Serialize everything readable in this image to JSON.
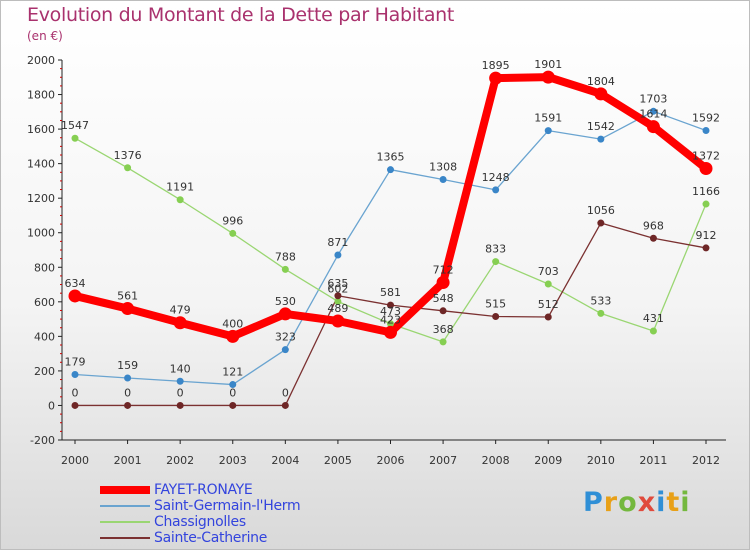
{
  "title": "Evolution du Montant de la Dette par Habitant",
  "subtitle": "(en €)",
  "logo": [
    "P",
    "r",
    "o",
    "x",
    "i",
    "t",
    "i"
  ],
  "chart_data": {
    "type": "line",
    "x": [
      2000,
      2001,
      2002,
      2003,
      2004,
      2005,
      2006,
      2007,
      2008,
      2009,
      2010,
      2011,
      2012
    ],
    "ylim": [
      -200,
      2000
    ],
    "yticks": [
      -200,
      0,
      200,
      400,
      600,
      800,
      1000,
      1200,
      1400,
      1600,
      1800,
      2000
    ],
    "grid": false,
    "legend_position": "bottom-left",
    "series": [
      {
        "name": "Saint-Germain-l'Herm",
        "color": "#6aa4d0",
        "point_color": "#3a86c8",
        "width": 1.3,
        "radius": 3.5,
        "values": [
          179,
          159,
          140,
          121,
          323,
          871,
          1365,
          1308,
          1248,
          1591,
          1542,
          1703,
          1592
        ]
      },
      {
        "name": "Chassignolles",
        "color": "#9ad672",
        "point_color": "#86cf52",
        "width": 1.3,
        "radius": 3.5,
        "values": [
          1547,
          1376,
          1191,
          996,
          788,
          602,
          473,
          368,
          833,
          703,
          533,
          431,
          1166
        ]
      },
      {
        "name": "Sainte-Catherine",
        "color": "#7b3131",
        "point_color": "#6e2626",
        "width": 1.3,
        "radius": 3.5,
        "values": [
          0,
          0,
          0,
          0,
          0,
          635,
          581,
          548,
          515,
          512,
          1056,
          968,
          912
        ]
      },
      {
        "name": "FAYET-RONAYE",
        "color": "#ff0000",
        "point_color": "#ff0000",
        "width": 8,
        "radius": 6.5,
        "values": [
          634,
          561,
          479,
          400,
          530,
          489,
          423,
          712,
          1895,
          1901,
          1804,
          1614,
          1372
        ]
      }
    ],
    "legend_order": [
      "FAYET-RONAYE",
      "Saint-Germain-l'Herm",
      "Chassignolles",
      "Sainte-Catherine"
    ],
    "legend_colors": [
      "#3344dd",
      "#3344dd",
      "#3344dd",
      "#3344dd"
    ]
  }
}
